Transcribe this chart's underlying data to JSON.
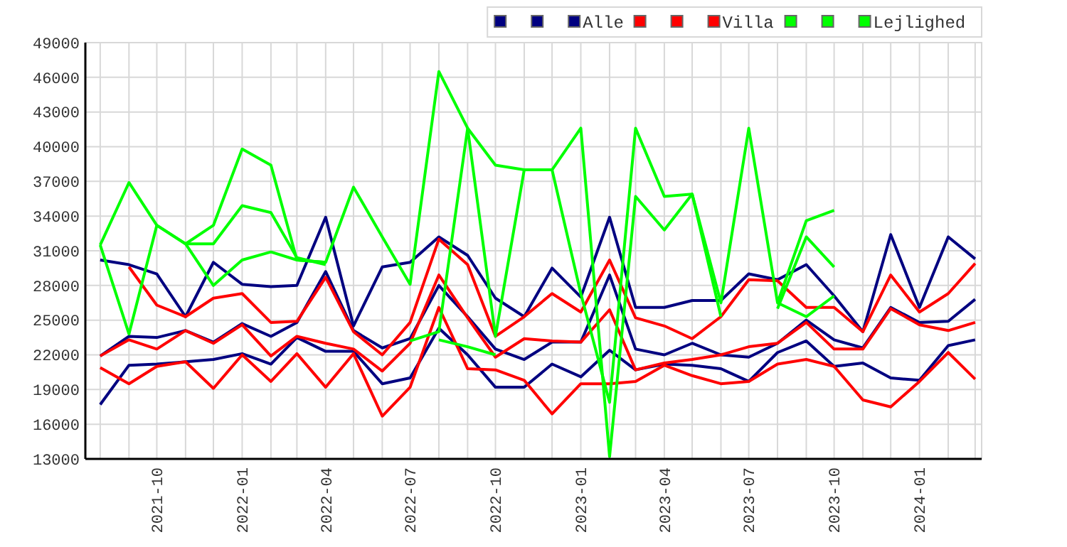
{
  "chart_data": {
    "type": "line",
    "x": [
      "2021-08",
      "2021-09",
      "2021-10",
      "2021-11",
      "2021-12",
      "2022-01",
      "2022-02",
      "2022-03",
      "2022-04",
      "2022-05",
      "2022-06",
      "2022-07",
      "2022-08",
      "2022-09",
      "2022-10",
      "2022-11",
      "2022-12",
      "2023-01",
      "2023-02",
      "2023-03",
      "2023-04",
      "2023-05",
      "2023-06",
      "2023-07",
      "2023-08",
      "2023-09",
      "2023-10",
      "2023-11",
      "2023-12",
      "2024-01",
      "2024-02",
      "2024-03"
    ],
    "xlim": [
      "2021-07-16",
      "2024-03-08"
    ],
    "xticks": [
      {
        "value": "2021-08",
        "label": null
      },
      {
        "value": "2021-09",
        "label": null
      },
      {
        "value": "2021-10",
        "label": "2021-10"
      },
      {
        "value": "2021-11",
        "label": null
      },
      {
        "value": "2021-12",
        "label": null
      },
      {
        "value": "2022-01",
        "label": "2022-01"
      },
      {
        "value": "2022-02",
        "label": null
      },
      {
        "value": "2022-03",
        "label": null
      },
      {
        "value": "2022-04",
        "label": "2022-04"
      },
      {
        "value": "2022-05",
        "label": null
      },
      {
        "value": "2022-06",
        "label": null
      },
      {
        "value": "2022-07",
        "label": "2022-07"
      },
      {
        "value": "2022-08",
        "label": null
      },
      {
        "value": "2022-09",
        "label": null
      },
      {
        "value": "2022-10",
        "label": "2022-10"
      },
      {
        "value": "2022-11",
        "label": null
      },
      {
        "value": "2022-12",
        "label": null
      },
      {
        "value": "2023-01",
        "label": "2023-01"
      },
      {
        "value": "2023-02",
        "label": null
      },
      {
        "value": "2023-03",
        "label": null
      },
      {
        "value": "2023-04",
        "label": "2023-04"
      },
      {
        "value": "2023-05",
        "label": null
      },
      {
        "value": "2023-06",
        "label": null
      },
      {
        "value": "2023-07",
        "label": "2023-07"
      },
      {
        "value": "2023-08",
        "label": null
      },
      {
        "value": "2023-09",
        "label": null
      },
      {
        "value": "2023-10",
        "label": "2023-10"
      },
      {
        "value": "2023-11",
        "label": null
      },
      {
        "value": "2023-12",
        "label": null
      },
      {
        "value": "2024-01",
        "label": "2024-01"
      },
      {
        "value": "2024-02",
        "label": null
      },
      {
        "value": "2024-03",
        "label": null
      }
    ],
    "ylim": [
      13000,
      49000
    ],
    "yticks": [
      13000,
      16000,
      19000,
      22000,
      25000,
      28000,
      31000,
      34000,
      37000,
      40000,
      43000,
      46000,
      49000
    ],
    "grid": true,
    "legend": "top right",
    "marker": "none",
    "line_style": "solid",
    "series": [
      {
        "color": "#000080",
        "values": [
          30200,
          29800,
          29000,
          25300,
          30000,
          28100,
          27900,
          28000,
          33900,
          24500,
          29600,
          30000,
          32200,
          30600,
          26900,
          25300,
          29500,
          27000,
          33900,
          26100,
          26100,
          26700,
          26700,
          29000,
          28500,
          29800,
          27100,
          24000,
          32400,
          26100,
          32200,
          30300
        ]
      },
      {
        "color": "#000080",
        "values": [
          21900,
          23600,
          23500,
          24100,
          23100,
          24700,
          23600,
          24800,
          29200,
          24100,
          22600,
          23400,
          28000,
          25300,
          22500,
          21600,
          23100,
          23100,
          28900,
          22500,
          22000,
          23000,
          22000,
          21800,
          23000,
          25000,
          23300,
          22600,
          26100,
          24800,
          24900,
          26800
        ]
      },
      {
        "name": "Alle",
        "color": "#000080",
        "values": [
          17700,
          21100,
          21200,
          21400,
          21600,
          22100,
          21200,
          23500,
          22300,
          22300,
          19500,
          20000,
          24300,
          22000,
          19200,
          19200,
          21200,
          20100,
          22400,
          20700,
          21200,
          21100,
          20800,
          19700,
          22200,
          23200,
          21000,
          21300,
          20000,
          19800,
          22800,
          23300
        ]
      },
      {
        "color": "#ff0000",
        "values": [
          null,
          29600,
          26300,
          25300,
          26900,
          27300,
          24800,
          24900,
          28700,
          24000,
          22000,
          24800,
          32000,
          29800,
          23600,
          25300,
          27300,
          25700,
          30200,
          25200,
          24500,
          23400,
          25300,
          28500,
          28400,
          26100,
          26100,
          24000,
          28900,
          25700,
          27300,
          29900
        ]
      },
      {
        "color": "#ff0000",
        "values": [
          21900,
          23300,
          22500,
          24100,
          23000,
          24600,
          21900,
          23600,
          23000,
          22500,
          20600,
          23000,
          28900,
          25200,
          21800,
          23400,
          23200,
          23100,
          25900,
          20700,
          21300,
          21600,
          22000,
          22700,
          23000,
          24800,
          22500,
          22500,
          26000,
          24600,
          24100,
          24800
        ]
      },
      {
        "name": "Villa",
        "color": "#ff0000",
        "values": [
          20900,
          19500,
          21000,
          21400,
          19100,
          22000,
          19700,
          22100,
          19200,
          22100,
          16700,
          19200,
          26100,
          20800,
          20700,
          19800,
          16900,
          19500,
          19500,
          19700,
          21100,
          20200,
          19500,
          19700,
          21200,
          21600,
          21000,
          18100,
          17500,
          19700,
          22200,
          19900
        ]
      },
      {
        "color": "#00ff00",
        "values": [
          31500,
          36900,
          33200,
          31600,
          28000,
          30200,
          30900,
          30200,
          30000,
          36500,
          32200,
          28100,
          46500,
          41600,
          38400,
          38000,
          38000,
          41600,
          13200,
          35700,
          32800,
          35900,
          26500,
          41600,
          26500,
          33600,
          34500,
          null,
          null,
          null,
          null,
          null
        ]
      },
      {
        "color": "#00ff00",
        "values": [
          31500,
          23800,
          33200,
          31600,
          33200,
          39800,
          38400,
          30200,
          30000,
          null,
          null,
          23200,
          24000,
          41600,
          23600,
          38000,
          38000,
          27300,
          17900,
          41600,
          35700,
          35900,
          25300,
          null,
          26000,
          32200,
          29600,
          null,
          null,
          null,
          null,
          null
        ]
      },
      {
        "name": "Lejlighed",
        "color": "#00ff00",
        "values": [
          null,
          null,
          null,
          31600,
          31600,
          34900,
          34300,
          30400,
          29800,
          null,
          null,
          null,
          23300,
          22700,
          22000,
          null,
          null,
          null,
          null,
          null,
          null,
          null,
          null,
          null,
          26500,
          25300,
          27100,
          null,
          null,
          null,
          null,
          null
        ]
      }
    ]
  }
}
